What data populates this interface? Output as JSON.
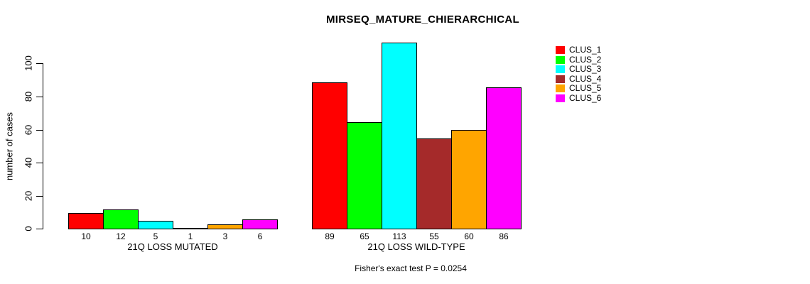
{
  "chart_data": {
    "type": "bar",
    "title": "MIRSEQ_MATURE_CHIERARCHICAL",
    "ylabel": "number of cases",
    "footnote": "Fisher's exact test P = 0.0254",
    "categories": [
      "21Q LOSS MUTATED",
      "21Q LOSS WILD-TYPE"
    ],
    "series": [
      {
        "name": "CLUS_1",
        "color": "#FF0000",
        "values": [
          10,
          89
        ]
      },
      {
        "name": "CLUS_2",
        "color": "#00FF00",
        "values": [
          12,
          65
        ]
      },
      {
        "name": "CLUS_3",
        "color": "#00FFFF",
        "values": [
          5,
          113
        ]
      },
      {
        "name": "CLUS_4",
        "color": "#A52A2A",
        "values": [
          1,
          55
        ]
      },
      {
        "name": "CLUS_5",
        "color": "#FFA500",
        "values": [
          3,
          60
        ]
      },
      {
        "name": "CLUS_6",
        "color": "#FF00FF",
        "values": [
          6,
          86
        ]
      }
    ],
    "bar_value_labels": true,
    "yticks": [
      0,
      20,
      40,
      60,
      80,
      100
    ],
    "ylim": [
      0,
      113
    ],
    "grid": false,
    "legend_position": "top-right"
  }
}
